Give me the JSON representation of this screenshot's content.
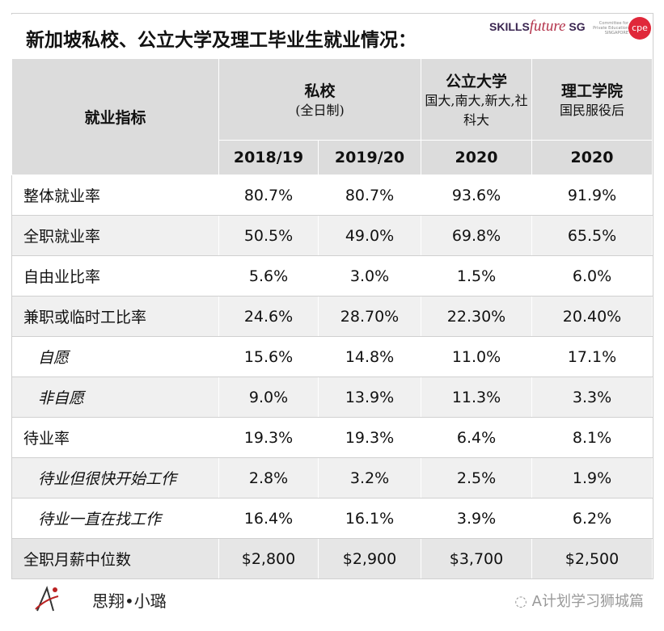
{
  "title": "新加坡私校、公立大学及理工毕业生就业情况：",
  "logos": {
    "skillsfuture": "SKILLSfuture SG",
    "cpe": "Committee for Private Education SINGAPORE",
    "cpe_mark": "cpe"
  },
  "header": {
    "indicator": "就业指标",
    "groups": [
      {
        "name": "私校",
        "sub": "(全日制)"
      },
      {
        "name": "公立大学",
        "sub": "国大,南大,新大,社科大"
      },
      {
        "name": "理工学院",
        "sub": "国民服役后"
      }
    ],
    "years": [
      "2018/19",
      "2019/20",
      "2020",
      "2020"
    ]
  },
  "rows": [
    {
      "label": "整体就业率",
      "values": [
        "80.7%",
        "80.7%",
        "93.6%",
        "91.9%"
      ]
    },
    {
      "label": "全职就业率",
      "values": [
        "50.5%",
        "49.0%",
        "69.8%",
        "65.5%"
      ]
    },
    {
      "label": "自由业比率",
      "values": [
        "5.6%",
        "3.0%",
        "1.5%",
        "6.0%"
      ]
    },
    {
      "label": "兼职或临时工比率",
      "values": [
        "24.6%",
        "28.70%",
        "22.30%",
        "20.40%"
      ]
    },
    {
      "label": "自愿",
      "values": [
        "15.6%",
        "14.8%",
        "11.0%",
        "17.1%"
      ]
    },
    {
      "label": "非自愿",
      "values": [
        "9.0%",
        "13.9%",
        "11.3%",
        "3.3%"
      ]
    },
    {
      "label": "待业率",
      "values": [
        "19.3%",
        "19.3%",
        "6.4%",
        "8.1%"
      ]
    },
    {
      "label": "待业但很快开始工作",
      "values": [
        "2.8%",
        "3.2%",
        "2.5%",
        "1.9%"
      ]
    },
    {
      "label": "待业一直在找工作",
      "values": [
        "16.4%",
        "16.1%",
        "3.9%",
        "6.2%"
      ]
    },
    {
      "label": "全职月薪中位数",
      "values": [
        "$2,800",
        "$2,900",
        "$3,700",
        "$2,500"
      ]
    }
  ],
  "footer": {
    "author": "思翔•小璐",
    "wechat": "A计划学习狮城篇"
  }
}
